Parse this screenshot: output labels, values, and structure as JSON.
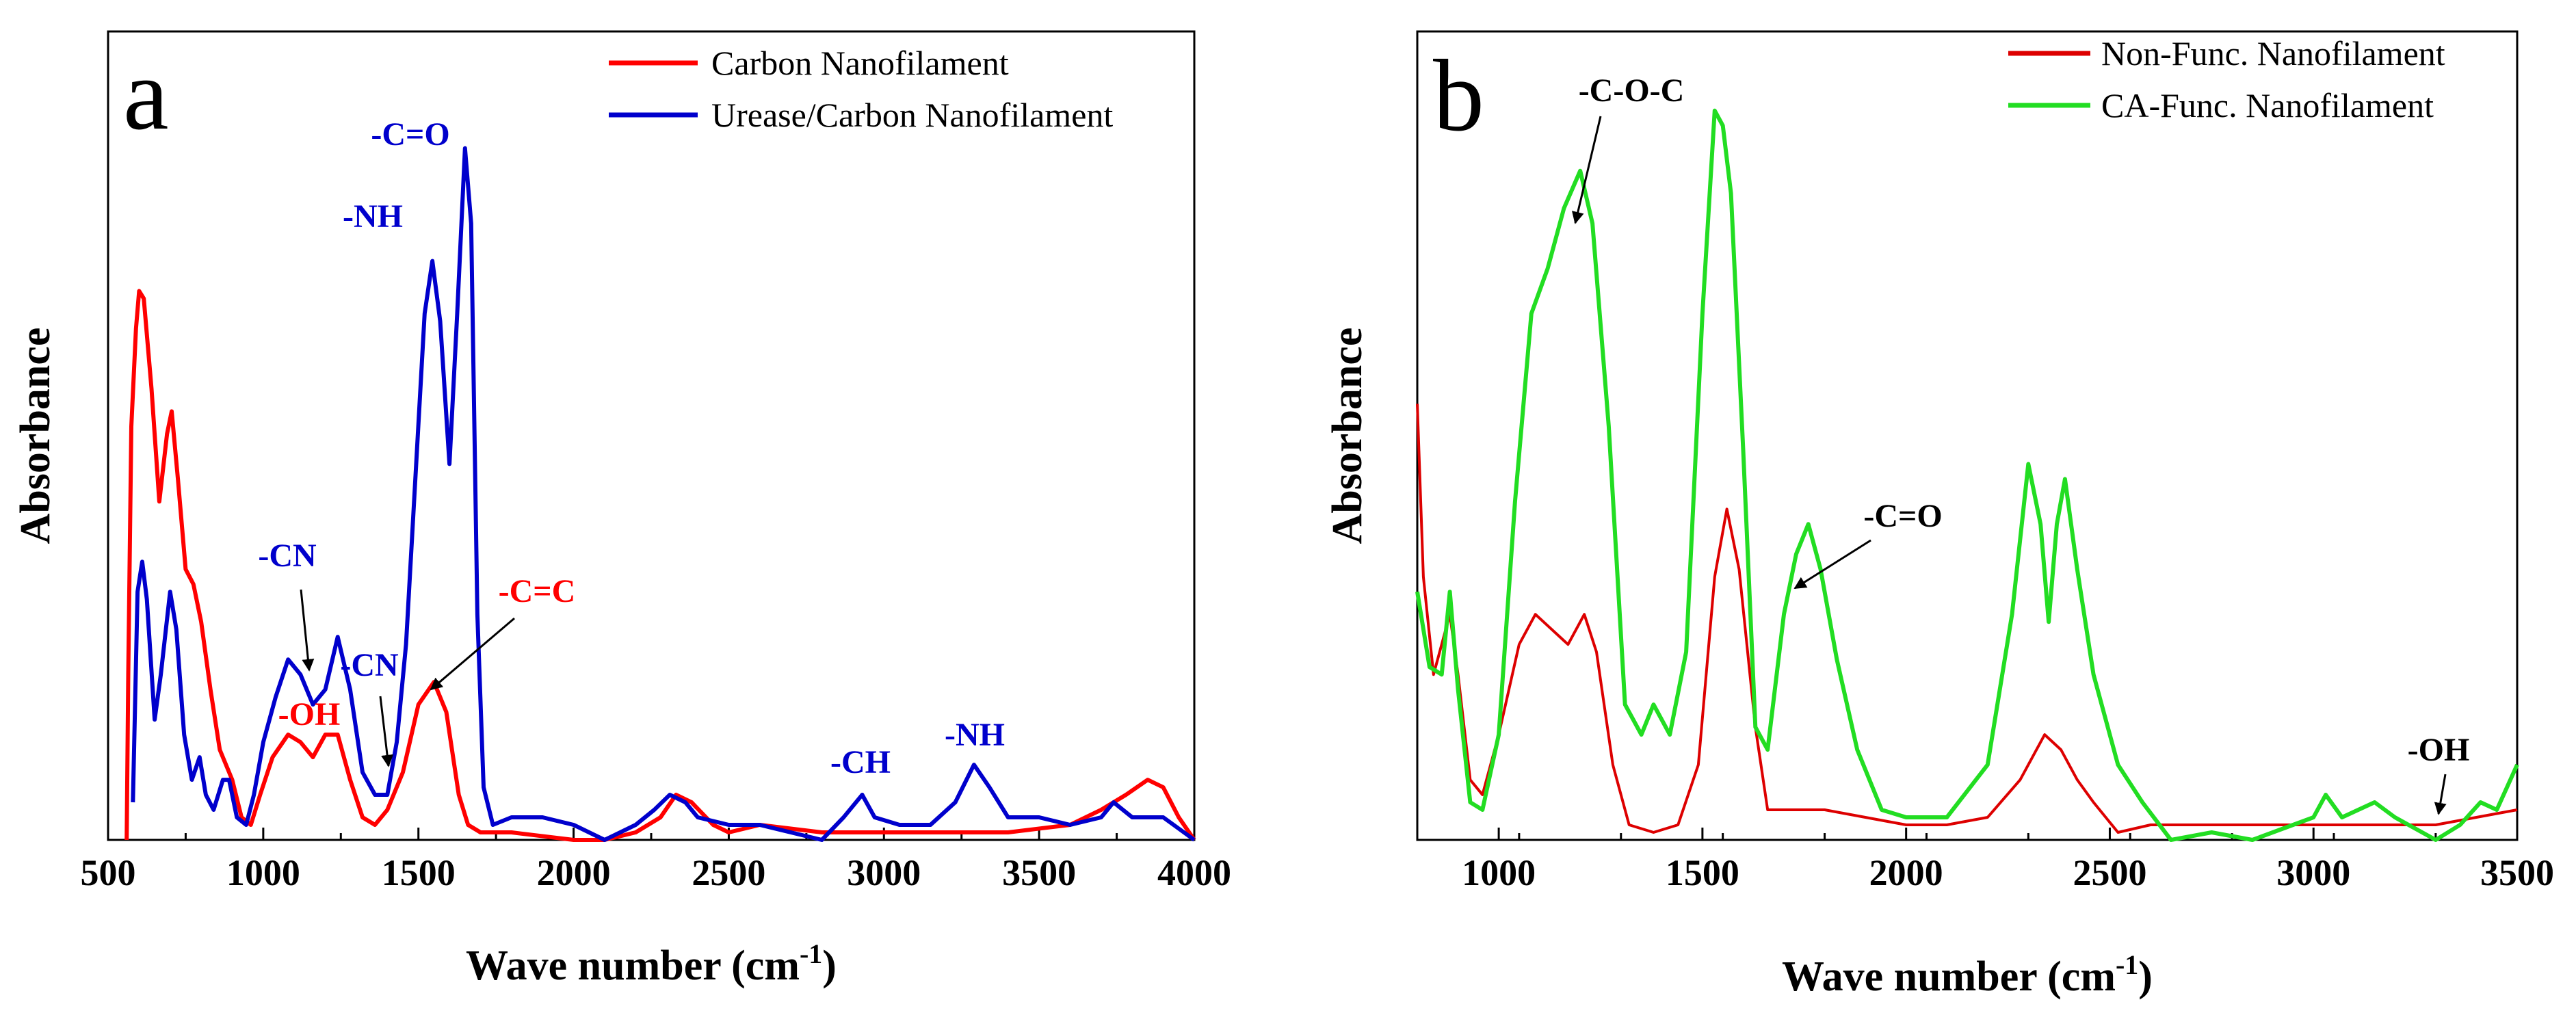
{
  "chart_data": [
    {
      "type": "line",
      "panel_label": "a",
      "xlabel": "Wave number (cm",
      "xlabel_sup": "-1",
      "xlabel_end": ")",
      "ylabel": "Absorbance",
      "xlim": [
        500,
        4000
      ],
      "ylim": [
        0,
        1
      ],
      "xticks": [
        500,
        1000,
        1500,
        2000,
        2500,
        3000,
        3500,
        4000
      ],
      "legend": "top-right",
      "series": [
        {
          "name": "Carbon Nanofilament",
          "color": "#ff0000",
          "points": [
            [
              560,
              0.0
            ],
            [
              565,
              0.22
            ],
            [
              575,
              0.55
            ],
            [
              590,
              0.68
            ],
            [
              600,
              0.73
            ],
            [
              615,
              0.72
            ],
            [
              640,
              0.6
            ],
            [
              665,
              0.45
            ],
            [
              690,
              0.54
            ],
            [
              705,
              0.57
            ],
            [
              725,
              0.48
            ],
            [
              750,
              0.36
            ],
            [
              775,
              0.34
            ],
            [
              800,
              0.29
            ],
            [
              830,
              0.2
            ],
            [
              860,
              0.12
            ],
            [
              880,
              0.1
            ],
            [
              900,
              0.08
            ],
            [
              930,
              0.03
            ],
            [
              960,
              0.02
            ],
            [
              990,
              0.06
            ],
            [
              1030,
              0.11
            ],
            [
              1080,
              0.14
            ],
            [
              1120,
              0.13
            ],
            [
              1160,
              0.11
            ],
            [
              1200,
              0.14
            ],
            [
              1240,
              0.14
            ],
            [
              1280,
              0.08
            ],
            [
              1320,
              0.03
            ],
            [
              1360,
              0.02
            ],
            [
              1400,
              0.04
            ],
            [
              1450,
              0.09
            ],
            [
              1500,
              0.18
            ],
            [
              1550,
              0.21
            ],
            [
              1590,
              0.17
            ],
            [
              1630,
              0.06
            ],
            [
              1660,
              0.02
            ],
            [
              1700,
              0.01
            ],
            [
              1800,
              0.01
            ],
            [
              2000,
              0.0
            ],
            [
              2100,
              0.0
            ],
            [
              2200,
              0.01
            ],
            [
              2280,
              0.03
            ],
            [
              2330,
              0.06
            ],
            [
              2380,
              0.05
            ],
            [
              2450,
              0.02
            ],
            [
              2500,
              0.01
            ],
            [
              2600,
              0.02
            ],
            [
              2800,
              0.01
            ],
            [
              3000,
              0.01
            ],
            [
              3200,
              0.01
            ],
            [
              3400,
              0.01
            ],
            [
              3600,
              0.02
            ],
            [
              3700,
              0.04
            ],
            [
              3780,
              0.06
            ],
            [
              3850,
              0.08
            ],
            [
              3900,
              0.07
            ],
            [
              3950,
              0.03
            ],
            [
              4000,
              0.0
            ]
          ]
        },
        {
          "name": "Urease/Carbon Nanofilament",
          "color": "#0000cc",
          "points": [
            [
              580,
              0.05
            ],
            [
              595,
              0.33
            ],
            [
              610,
              0.37
            ],
            [
              625,
              0.32
            ],
            [
              650,
              0.16
            ],
            [
              670,
              0.22
            ],
            [
              700,
              0.33
            ],
            [
              720,
              0.28
            ],
            [
              745,
              0.14
            ],
            [
              770,
              0.08
            ],
            [
              795,
              0.11
            ],
            [
              815,
              0.06
            ],
            [
              840,
              0.04
            ],
            [
              870,
              0.08
            ],
            [
              890,
              0.08
            ],
            [
              915,
              0.03
            ],
            [
              945,
              0.02
            ],
            [
              970,
              0.06
            ],
            [
              1000,
              0.13
            ],
            [
              1040,
              0.19
            ],
            [
              1080,
              0.24
            ],
            [
              1120,
              0.22
            ],
            [
              1160,
              0.18
            ],
            [
              1200,
              0.2
            ],
            [
              1240,
              0.27
            ],
            [
              1280,
              0.2
            ],
            [
              1320,
              0.09
            ],
            [
              1360,
              0.06
            ],
            [
              1400,
              0.06
            ],
            [
              1430,
              0.13
            ],
            [
              1460,
              0.26
            ],
            [
              1490,
              0.48
            ],
            [
              1520,
              0.7
            ],
            [
              1545,
              0.77
            ],
            [
              1570,
              0.69
            ],
            [
              1600,
              0.5
            ],
            [
              1625,
              0.7
            ],
            [
              1650,
              0.92
            ],
            [
              1670,
              0.82
            ],
            [
              1690,
              0.3
            ],
            [
              1710,
              0.07
            ],
            [
              1740,
              0.02
            ],
            [
              1800,
              0.03
            ],
            [
              1900,
              0.03
            ],
            [
              2000,
              0.02
            ],
            [
              2100,
              0.0
            ],
            [
              2200,
              0.02
            ],
            [
              2260,
              0.04
            ],
            [
              2310,
              0.06
            ],
            [
              2360,
              0.05
            ],
            [
              2400,
              0.03
            ],
            [
              2500,
              0.02
            ],
            [
              2600,
              0.02
            ],
            [
              2700,
              0.01
            ],
            [
              2800,
              0.0
            ],
            [
              2870,
              0.03
            ],
            [
              2930,
              0.06
            ],
            [
              2970,
              0.03
            ],
            [
              3050,
              0.02
            ],
            [
              3150,
              0.02
            ],
            [
              3230,
              0.05
            ],
            [
              3290,
              0.1
            ],
            [
              3340,
              0.07
            ],
            [
              3400,
              0.03
            ],
            [
              3500,
              0.03
            ],
            [
              3600,
              0.02
            ],
            [
              3700,
              0.03
            ],
            [
              3740,
              0.05
            ],
            [
              3800,
              0.03
            ],
            [
              3900,
              0.03
            ],
            [
              4000,
              0.0
            ]
          ]
        }
      ],
      "annotations": [
        {
          "text": "-C=O",
          "color": "#0000cc"
        },
        {
          "text": "-NH",
          "color": "#0000cc"
        },
        {
          "text": "-CN",
          "color": "#0000cc"
        },
        {
          "text": "-OH",
          "color": "#ff0000"
        },
        {
          "text": "-CN",
          "color": "#0000cc"
        },
        {
          "text": "-C=C",
          "color": "#ff0000"
        },
        {
          "text": "-CH",
          "color": "#0000cc"
        },
        {
          "text": "-NH",
          "color": "#0000cc"
        }
      ]
    },
    {
      "type": "line",
      "panel_label": "b",
      "xlabel": "Wave number (cm",
      "xlabel_sup": "-1",
      "xlabel_end": ")",
      "ylabel": "Absorbance",
      "xlim": [
        800,
        3500
      ],
      "ylim": [
        0,
        1
      ],
      "xticks": [
        1000,
        1500,
        2000,
        2500,
        3000,
        3500
      ],
      "legend": "top-right",
      "series": [
        {
          "name": "Non-Func. Nanofilament",
          "color": "#dd0000",
          "points": [
            [
              800,
              0.58
            ],
            [
              815,
              0.35
            ],
            [
              840,
              0.22
            ],
            [
              860,
              0.26
            ],
            [
              880,
              0.3
            ],
            [
              900,
              0.22
            ],
            [
              930,
              0.08
            ],
            [
              960,
              0.06
            ],
            [
              1000,
              0.14
            ],
            [
              1050,
              0.26
            ],
            [
              1090,
              0.3
            ],
            [
              1130,
              0.28
            ],
            [
              1170,
              0.26
            ],
            [
              1210,
              0.3
            ],
            [
              1240,
              0.25
            ],
            [
              1280,
              0.1
            ],
            [
              1320,
              0.02
            ],
            [
              1380,
              0.01
            ],
            [
              1440,
              0.02
            ],
            [
              1490,
              0.1
            ],
            [
              1530,
              0.35
            ],
            [
              1560,
              0.44
            ],
            [
              1590,
              0.36
            ],
            [
              1630,
              0.15
            ],
            [
              1660,
              0.04
            ],
            [
              1720,
              0.04
            ],
            [
              1800,
              0.04
            ],
            [
              1900,
              0.03
            ],
            [
              2000,
              0.02
            ],
            [
              2100,
              0.02
            ],
            [
              2200,
              0.03
            ],
            [
              2280,
              0.08
            ],
            [
              2340,
              0.14
            ],
            [
              2380,
              0.12
            ],
            [
              2420,
              0.08
            ],
            [
              2460,
              0.05
            ],
            [
              2520,
              0.01
            ],
            [
              2600,
              0.02
            ],
            [
              2700,
              0.02
            ],
            [
              2800,
              0.02
            ],
            [
              2900,
              0.02
            ],
            [
              3000,
              0.02
            ],
            [
              3100,
              0.02
            ],
            [
              3200,
              0.02
            ],
            [
              3300,
              0.02
            ],
            [
              3400,
              0.03
            ],
            [
              3500,
              0.04
            ]
          ]
        },
        {
          "name": "CA-Func. Nanofilament",
          "color": "#22dd22",
          "points": [
            [
              800,
              0.33
            ],
            [
              830,
              0.23
            ],
            [
              860,
              0.22
            ],
            [
              880,
              0.33
            ],
            [
              900,
              0.2
            ],
            [
              930,
              0.05
            ],
            [
              960,
              0.04
            ],
            [
              1000,
              0.14
            ],
            [
              1040,
              0.45
            ],
            [
              1080,
              0.7
            ],
            [
              1120,
              0.76
            ],
            [
              1160,
              0.84
            ],
            [
              1200,
              0.89
            ],
            [
              1230,
              0.82
            ],
            [
              1270,
              0.55
            ],
            [
              1310,
              0.18
            ],
            [
              1350,
              0.14
            ],
            [
              1380,
              0.18
            ],
            [
              1420,
              0.14
            ],
            [
              1460,
              0.25
            ],
            [
              1500,
              0.7
            ],
            [
              1530,
              0.97
            ],
            [
              1550,
              0.95
            ],
            [
              1570,
              0.86
            ],
            [
              1600,
              0.52
            ],
            [
              1630,
              0.15
            ],
            [
              1660,
              0.12
            ],
            [
              1700,
              0.3
            ],
            [
              1730,
              0.38
            ],
            [
              1760,
              0.42
            ],
            [
              1790,
              0.36
            ],
            [
              1830,
              0.24
            ],
            [
              1880,
              0.12
            ],
            [
              1940,
              0.04
            ],
            [
              2000,
              0.03
            ],
            [
              2100,
              0.03
            ],
            [
              2200,
              0.1
            ],
            [
              2260,
              0.3
            ],
            [
              2300,
              0.5
            ],
            [
              2330,
              0.42
            ],
            [
              2350,
              0.29
            ],
            [
              2370,
              0.42
            ],
            [
              2390,
              0.48
            ],
            [
              2420,
              0.36
            ],
            [
              2460,
              0.22
            ],
            [
              2520,
              0.1
            ],
            [
              2580,
              0.05
            ],
            [
              2650,
              0.0
            ],
            [
              2750,
              0.01
            ],
            [
              2850,
              0.0
            ],
            [
              2950,
              0.02
            ],
            [
              3000,
              0.03
            ],
            [
              3030,
              0.06
            ],
            [
              3070,
              0.03
            ],
            [
              3110,
              0.04
            ],
            [
              3150,
              0.05
            ],
            [
              3200,
              0.03
            ],
            [
              3300,
              0.0
            ],
            [
              3360,
              0.02
            ],
            [
              3410,
              0.05
            ],
            [
              3450,
              0.04
            ],
            [
              3500,
              0.1
            ]
          ]
        }
      ],
      "annotations": [
        {
          "text": "-C-O-C",
          "color": "#000000"
        },
        {
          "text": "-C=O",
          "color": "#000000"
        },
        {
          "text": "-OH",
          "color": "#000000"
        }
      ]
    }
  ]
}
